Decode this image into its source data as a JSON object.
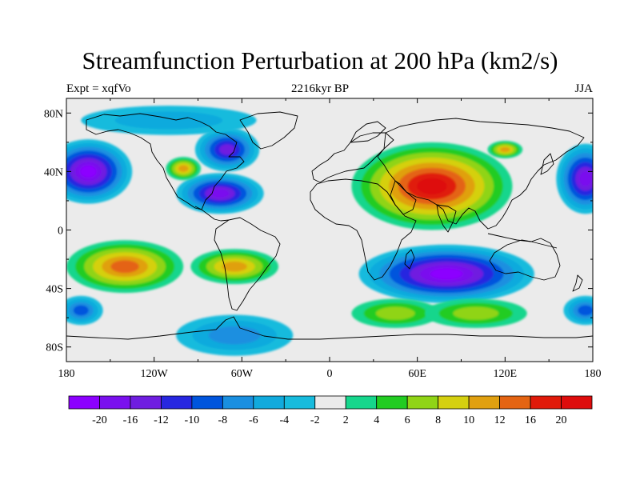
{
  "title": "Streamfunction Perturbation at 200 hPa (km2/s)",
  "subtitle_left": "Expt = xqfVo",
  "subtitle_center": "2216kyr BP",
  "subtitle_right": "JJA",
  "map": {
    "lon_range": [
      -180,
      180
    ],
    "lat_range": [
      -90,
      90
    ],
    "lat_ticks": [
      {
        "value": 80,
        "label": "80N"
      },
      {
        "value": 40,
        "label": "40N"
      },
      {
        "value": 0,
        "label": "0"
      },
      {
        "value": -40,
        "label": "40S"
      },
      {
        "value": -80,
        "label": "80S"
      }
    ],
    "lon_ticks": [
      {
        "value": -180,
        "label": "180"
      },
      {
        "value": -120,
        "label": "120W"
      },
      {
        "value": -60,
        "label": "60W"
      },
      {
        "value": 0,
        "label": "0"
      },
      {
        "value": 60,
        "label": "60E"
      },
      {
        "value": 120,
        "label": "120E"
      },
      {
        "value": 180,
        "label": "180"
      }
    ],
    "field_features": [
      {
        "name": "tibetan-high",
        "lon": 70,
        "lat": 30,
        "rlon": 55,
        "rlat": 30,
        "level": 20
      },
      {
        "name": "south-indian-ocean-low",
        "lon": 80,
        "lat": -30,
        "rlon": 60,
        "rlat": 20,
        "level": -20
      },
      {
        "name": "pacific-west-low",
        "lon": -165,
        "lat": 40,
        "rlon": 30,
        "rlat": 22,
        "level": -20
      },
      {
        "name": "pacific-east-low",
        "lon": 175,
        "lat": 35,
        "rlon": 20,
        "rlat": 24,
        "level": -16
      },
      {
        "name": "north-america-low",
        "lon": -70,
        "lat": 55,
        "rlon": 22,
        "rlat": 15,
        "level": -12
      },
      {
        "name": "caribbean-low",
        "lon": -75,
        "lat": 25,
        "rlon": 30,
        "rlat": 14,
        "level": -16
      },
      {
        "name": "north-america-high",
        "lon": -100,
        "lat": 42,
        "rlon": 12,
        "rlat": 8,
        "level": 10
      },
      {
        "name": "south-pacific-high",
        "lon": -140,
        "lat": -25,
        "rlon": 40,
        "rlat": 18,
        "level": 12
      },
      {
        "name": "south-america-high",
        "lon": -65,
        "lat": -25,
        "rlon": 30,
        "rlat": 12,
        "level": 10
      },
      {
        "name": "southern-ocean-high",
        "lon": 45,
        "lat": -57,
        "rlon": 30,
        "rlat": 10,
        "level": 6
      },
      {
        "name": "southern-ocean-high-2",
        "lon": 100,
        "lat": -57,
        "rlon": 35,
        "rlat": 10,
        "level": 6
      },
      {
        "name": "antarctic-low",
        "lon": -65,
        "lat": -72,
        "rlon": 40,
        "rlat": 14,
        "level": -6
      },
      {
        "name": "southwest-pacific-low",
        "lon": -170,
        "lat": -55,
        "rlon": 15,
        "rlat": 10,
        "level": -8
      },
      {
        "name": "southeast-pacific-low",
        "lon": 175,
        "lat": -55,
        "rlon": 15,
        "rlat": 10,
        "level": -8
      },
      {
        "name": "arctic-low",
        "lon": -110,
        "lat": 75,
        "rlon": 60,
        "rlat": 10,
        "level": -4
      },
      {
        "name": "east-asia-high",
        "lon": 120,
        "lat": 55,
        "rlon": 12,
        "rlat": 6,
        "level": 10
      }
    ]
  },
  "colorbar": {
    "labels": [
      "-20",
      "-16",
      "-12",
      "-10",
      "-8",
      "-6",
      "-4",
      "-2",
      "2",
      "4",
      "6",
      "8",
      "10",
      "12",
      "16",
      "20"
    ],
    "colors": [
      "#8c00ff",
      "#7a10ee",
      "#6f1ee0",
      "#2727e0",
      "#0055dd",
      "#1a8fe0",
      "#11aadd",
      "#17bbdd",
      "#ebebeb",
      "#16d68c",
      "#22cc22",
      "#90d416",
      "#d5d010",
      "#e0a010",
      "#e46412",
      "#e01a0a",
      "#de0c0c"
    ]
  }
}
